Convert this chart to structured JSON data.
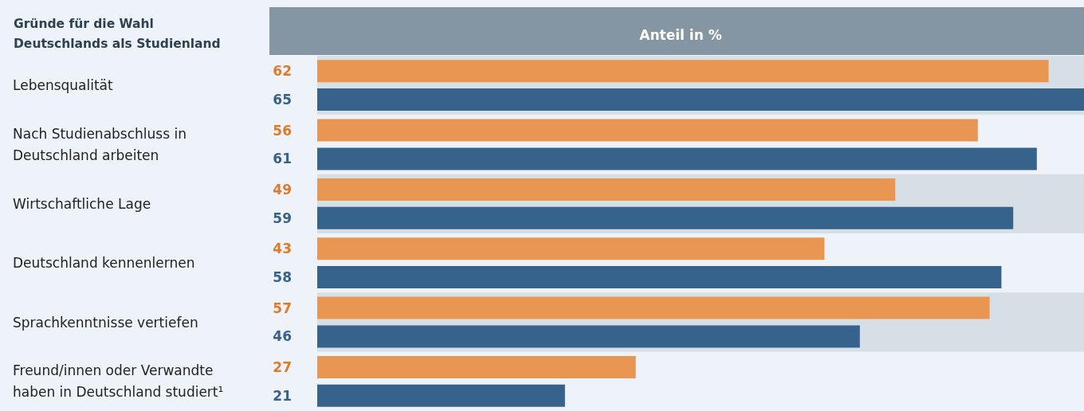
{
  "chart_data": {
    "type": "bar",
    "orientation": "horizontal",
    "ylabel": "Gründe für die Wahl Deutschlands als Studienland",
    "xlabel": "Anteil in %",
    "categories": [
      "Lebensqualität",
      "Nach Studienabschluss in Deutschland arbeiten",
      "Wirtschaftliche Lage",
      "Deutschland kennenlernen",
      "Sprachkenntnisse vertiefen",
      "Freund/innen oder Verwandte haben in Deutschland studiert¹"
    ],
    "series": [
      {
        "color": "#e99653",
        "values": [
          62,
          56,
          49,
          43,
          57,
          27
        ]
      },
      {
        "color": "#37628c",
        "values": [
          65,
          61,
          59,
          58,
          46,
          21
        ]
      }
    ],
    "xlim": [
      0,
      65
    ],
    "data_labels": true
  }
}
